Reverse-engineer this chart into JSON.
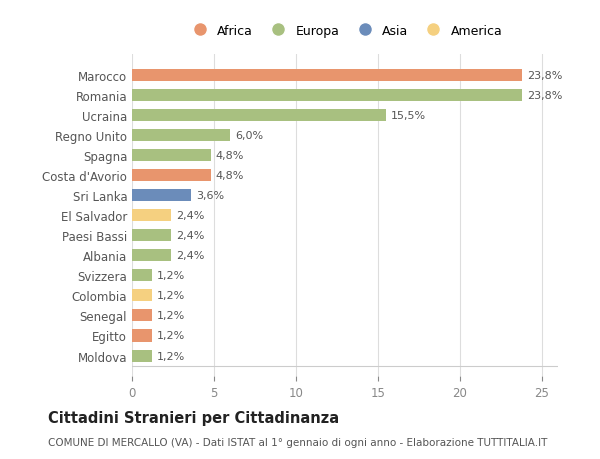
{
  "categories": [
    "Moldova",
    "Egitto",
    "Senegal",
    "Colombia",
    "Svizzera",
    "Albania",
    "Paesi Bassi",
    "El Salvador",
    "Sri Lanka",
    "Costa d'Avorio",
    "Spagna",
    "Regno Unito",
    "Ucraina",
    "Romania",
    "Marocco"
  ],
  "values": [
    1.2,
    1.2,
    1.2,
    1.2,
    1.2,
    2.4,
    2.4,
    2.4,
    3.6,
    4.8,
    4.8,
    6.0,
    15.5,
    23.8,
    23.8
  ],
  "labels": [
    "1,2%",
    "1,2%",
    "1,2%",
    "1,2%",
    "1,2%",
    "2,4%",
    "2,4%",
    "2,4%",
    "3,6%",
    "4,8%",
    "4,8%",
    "6,0%",
    "15,5%",
    "23,8%",
    "23,8%"
  ],
  "colors": [
    "#a8c080",
    "#e8956d",
    "#e8956d",
    "#f5d080",
    "#a8c080",
    "#a8c080",
    "#a8c080",
    "#f5d080",
    "#6b8cba",
    "#e8956d",
    "#a8c080",
    "#a8c080",
    "#a8c080",
    "#a8c080",
    "#e8956d"
  ],
  "legend_labels": [
    "Africa",
    "Europa",
    "Asia",
    "America"
  ],
  "legend_colors": [
    "#e8956d",
    "#a8c080",
    "#6b8cba",
    "#f5d080"
  ],
  "title": "Cittadini Stranieri per Cittadinanza",
  "subtitle": "COMUNE DI MERCALLO (VA) - Dati ISTAT al 1° gennaio di ogni anno - Elaborazione TUTTITALIA.IT",
  "xlim": [
    0,
    26
  ],
  "xticks": [
    0,
    5,
    10,
    15,
    20,
    25
  ],
  "background_color": "#ffffff",
  "bar_height": 0.6,
  "grid_color": "#dddddd"
}
